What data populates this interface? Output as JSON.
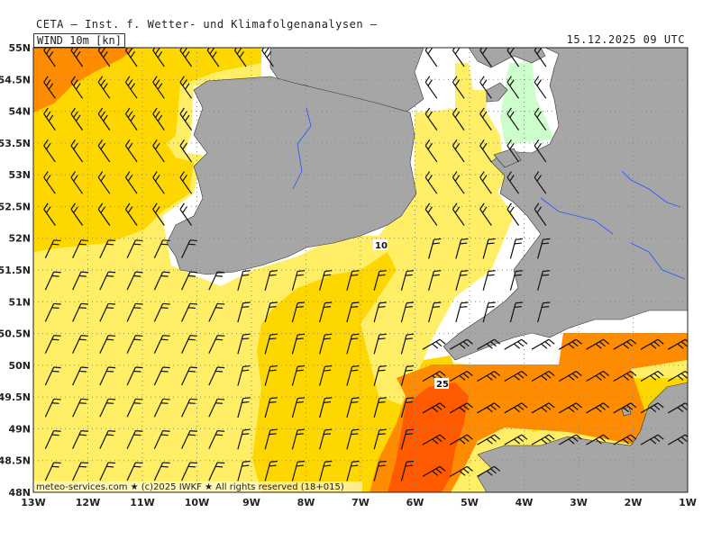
{
  "header": {
    "title": "CETA — Inst. f. Wetter- und Klimafolgenanalysen —",
    "parameter": "WIND 10m [kn]",
    "valid_time": "15.12.2025 09 UTC"
  },
  "axes": {
    "lat_labels": [
      "55N",
      "54.5N",
      "54N",
      "53.5N",
      "53N",
      "52.5N",
      "52N",
      "51.5N",
      "51N",
      "50.5N",
      "50N",
      "49.5N",
      "49N",
      "48.5N",
      "48N"
    ],
    "lon_labels": [
      "13W",
      "12W",
      "11W",
      "10W",
      "9W",
      "8W",
      "7W",
      "6W",
      "5W",
      "4W",
      "3W",
      "2W",
      "1W"
    ]
  },
  "contour_labels": [
    "10",
    "25"
  ],
  "credit": "meteo-services.com ★ (c)2025 IWKF ★ All rights reserved (18+015)",
  "colors": {
    "land": "#a6a6a6",
    "sea_calm": "#ffffff",
    "band_light_green": "#ccffcc",
    "band_pale_yellow": "#ffee66",
    "band_yellow": "#ffd700",
    "band_orange": "#ff8c00",
    "band_dark_orange": "#ff5a00",
    "barb": "#111111",
    "grid": "#888888"
  }
}
